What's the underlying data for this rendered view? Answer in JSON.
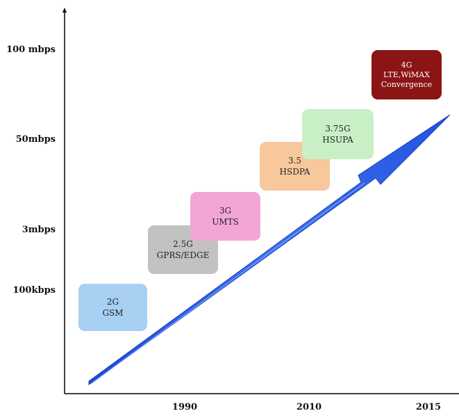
{
  "y_axis": {
    "labels": [
      "100 mbps",
      "50mbps",
      "3mbps",
      "100kbps"
    ]
  },
  "x_axis": {
    "labels": [
      "1990",
      "2010",
      "2015"
    ]
  },
  "generations": [
    {
      "gen": "2G",
      "tech": "GSM",
      "color": "#a7d0f3"
    },
    {
      "gen": "2.5G",
      "tech": "GPRS/EDGE",
      "color": "#c2c2c2"
    },
    {
      "gen": "3G",
      "tech": "UMTS",
      "color": "#f3a6d6"
    },
    {
      "gen": "3.5",
      "tech": "HSDPA",
      "color": "#f6c89b"
    },
    {
      "gen": "3.75G",
      "tech": "HSUPA",
      "color": "#c9efc6"
    },
    {
      "gen": "4G",
      "tech": "LTE,WiMAX",
      "extra": "Convergence",
      "color": "#8b1414"
    }
  ],
  "arrow_color": "#2f5ee8"
}
